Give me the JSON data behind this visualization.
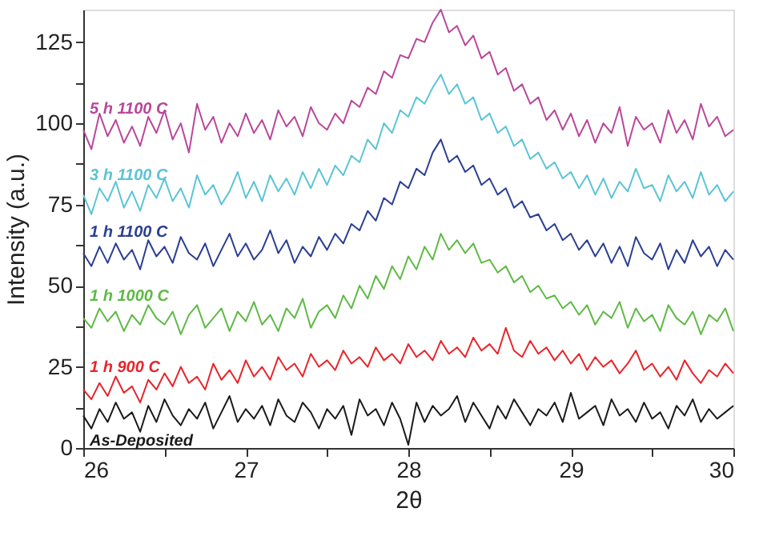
{
  "chart_data": {
    "type": "line",
    "xlabel": "2θ",
    "ylabel": "Intensity (a.u.)",
    "xlim": [
      26,
      30
    ],
    "ylim": [
      0,
      135
    ],
    "xticks": [
      26,
      {
        "value": 26.5,
        "label": null
      },
      27,
      {
        "value": 27.5,
        "label": null
      },
      28,
      {
        "value": 28.5,
        "label": null
      },
      29,
      {
        "value": 29.5,
        "label": null
      },
      30
    ],
    "yticks": [
      0,
      {
        "value": 12.5,
        "label": null
      },
      25,
      {
        "value": 37.5,
        "label": null
      },
      50,
      {
        "value": 62.5,
        "label": null
      },
      75,
      {
        "value": 87.5,
        "label": null
      },
      100,
      {
        "value": 112.5,
        "label": null
      },
      125
    ],
    "grid": false,
    "legend": false,
    "marker": "none",
    "line_style": "solid",
    "x": [
      26.0,
      26.05,
      26.1,
      26.15,
      26.2,
      26.25,
      26.3,
      26.35,
      26.4,
      26.45,
      26.5,
      26.55,
      26.6,
      26.65,
      26.7,
      26.75,
      26.8,
      26.85,
      26.9,
      26.95,
      27.0,
      27.05,
      27.1,
      27.15,
      27.2,
      27.25,
      27.3,
      27.35,
      27.4,
      27.45,
      27.5,
      27.55,
      27.6,
      27.65,
      27.7,
      27.75,
      27.8,
      27.85,
      27.9,
      27.95,
      28.0,
      28.05,
      28.1,
      28.15,
      28.2,
      28.25,
      28.3,
      28.35,
      28.4,
      28.45,
      28.5,
      28.55,
      28.6,
      28.65,
      28.7,
      28.75,
      28.8,
      28.85,
      28.9,
      28.95,
      29.0,
      29.05,
      29.1,
      29.15,
      29.2,
      29.25,
      29.3,
      29.35,
      29.4,
      29.45,
      29.5,
      29.55,
      29.6,
      29.65,
      29.7,
      29.75,
      29.8,
      29.85,
      29.9,
      29.95,
      30.0
    ],
    "series": [
      {
        "name": "5 h 1100 C",
        "color": "#b9479b",
        "values": [
          98,
          92,
          103,
          96,
          101,
          94,
          99,
          93,
          102,
          97,
          104,
          95,
          100,
          91,
          106,
          98,
          102,
          94,
          100,
          96,
          103,
          97,
          101,
          95,
          104,
          99,
          102,
          96,
          105,
          100,
          98,
          103,
          100,
          107,
          105,
          111,
          109,
          116,
          114,
          121,
          120,
          126,
          125,
          131,
          135,
          128,
          130,
          124,
          127,
          120,
          122,
          115,
          117,
          110,
          112,
          106,
          108,
          101,
          104,
          98,
          103,
          96,
          101,
          94,
          100,
          97,
          105,
          93,
          102,
          98,
          100,
          94,
          104,
          97,
          101,
          95,
          106,
          99,
          102,
          96,
          98
        ]
      },
      {
        "name": "3 h 1100 C",
        "color": "#5bc4d6",
        "values": [
          78,
          72,
          80,
          76,
          82,
          74,
          79,
          73,
          81,
          77,
          83,
          76,
          80,
          74,
          84,
          78,
          81,
          75,
          79,
          85,
          77,
          82,
          76,
          84,
          79,
          83,
          78,
          85,
          80,
          86,
          81,
          87,
          84,
          90,
          88,
          95,
          92,
          100,
          97,
          104,
          102,
          108,
          106,
          111,
          115,
          109,
          112,
          106,
          108,
          101,
          103,
          97,
          99,
          93,
          95,
          89,
          91,
          86,
          88,
          83,
          85,
          80,
          84,
          78,
          83,
          77,
          82,
          79,
          86,
          80,
          81,
          76,
          84,
          79,
          82,
          77,
          85,
          78,
          81,
          76,
          79
        ]
      },
      {
        "name": "1 h 1100 C",
        "color": "#2b3f93",
        "values": [
          60,
          56,
          62,
          57,
          63,
          58,
          61,
          55,
          64,
          59,
          62,
          57,
          65,
          60,
          58,
          63,
          56,
          61,
          66,
          59,
          63,
          58,
          61,
          67,
          60,
          64,
          57,
          62,
          59,
          65,
          61,
          66,
          63,
          69,
          67,
          73,
          70,
          77,
          75,
          82,
          80,
          86,
          84,
          91,
          95,
          88,
          90,
          85,
          87,
          81,
          83,
          78,
          80,
          74,
          76,
          71,
          72,
          67,
          69,
          64,
          66,
          61,
          64,
          59,
          63,
          57,
          62,
          56,
          65,
          60,
          58,
          63,
          55,
          61,
          57,
          64,
          59,
          62,
          56,
          61,
          58
        ]
      },
      {
        "name": "1 h 1000 C",
        "color": "#5fb946",
        "values": [
          40,
          37,
          43,
          39,
          42,
          36,
          41,
          38,
          44,
          40,
          38,
          42,
          35,
          41,
          44,
          37,
          40,
          43,
          36,
          42,
          39,
          45,
          38,
          41,
          36,
          43,
          40,
          46,
          37,
          42,
          44,
          40,
          47,
          43,
          50,
          46,
          53,
          49,
          56,
          52,
          59,
          55,
          62,
          58,
          66,
          61,
          64,
          60,
          63,
          57,
          58,
          54,
          56,
          51,
          53,
          48,
          50,
          46,
          47,
          43,
          45,
          41,
          44,
          38,
          42,
          40,
          45,
          37,
          43,
          39,
          41,
          36,
          44,
          40,
          38,
          42,
          35,
          41,
          39,
          43,
          36
        ]
      },
      {
        "name": "1 h   900 C",
        "color": "#e8252b",
        "values": [
          18,
          15,
          20,
          16,
          22,
          17,
          19,
          14,
          21,
          18,
          23,
          19,
          25,
          20,
          22,
          18,
          26,
          21,
          24,
          20,
          27,
          22,
          25,
          21,
          28,
          24,
          26,
          22,
          29,
          25,
          27,
          24,
          30,
          26,
          28,
          25,
          31,
          27,
          29,
          26,
          32,
          28,
          30,
          27,
          33,
          29,
          31,
          28,
          34,
          30,
          32,
          29,
          37,
          30,
          28,
          33,
          29,
          31,
          27,
          30,
          26,
          29,
          24,
          28,
          25,
          27,
          23,
          26,
          30,
          24,
          26,
          22,
          25,
          21,
          27,
          23,
          20,
          24,
          22,
          26,
          23
        ]
      },
      {
        "name": "As-Deposited",
        "color": "#1a1a1a",
        "values": [
          10,
          6,
          12,
          8,
          14,
          9,
          11,
          5,
          13,
          8,
          15,
          10,
          7,
          12,
          9,
          14,
          6,
          11,
          16,
          8,
          12,
          9,
          13,
          7,
          15,
          10,
          8,
          14,
          11,
          6,
          12,
          9,
          13,
          4,
          15,
          10,
          12,
          7,
          14,
          9,
          1,
          14,
          8,
          13,
          10,
          12,
          16,
          8,
          14,
          10,
          6,
          13,
          9,
          15,
          11,
          7,
          12,
          10,
          14,
          8,
          17,
          9,
          11,
          13,
          7,
          15,
          10,
          12,
          8,
          14,
          9,
          11,
          6,
          13,
          10,
          15,
          8,
          12,
          9,
          11,
          13
        ]
      }
    ]
  }
}
